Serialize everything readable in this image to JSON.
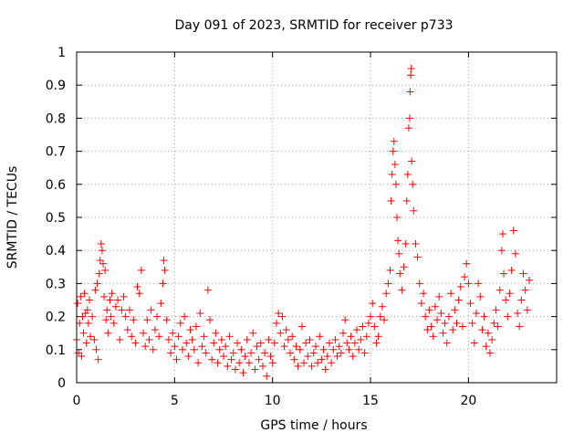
{
  "chart_data": {
    "type": "scatter",
    "title": "Day 091 of 2023, SRMTID for receiver p733",
    "xlabel": "GPS time / hours",
    "ylabel": "SRMTID / TECUs",
    "xlim": [
      0,
      24.5
    ],
    "ylim": [
      0,
      1
    ],
    "xticks": [
      0,
      5,
      10,
      15,
      20
    ],
    "xtick_labels": [
      "0",
      "5",
      "10",
      "15",
      "20"
    ],
    "yticks": [
      0,
      0.1,
      0.2,
      0.3,
      0.4,
      0.5,
      0.6,
      0.7,
      0.8,
      0.9,
      1
    ],
    "ytick_labels": [
      "0",
      "0.1",
      "0.2",
      "0.3",
      "0.4",
      "0.5",
      "0.6",
      "0.7",
      "0.8",
      "0.9",
      "1"
    ],
    "grid": true,
    "marker": "+",
    "color": "#ff0000",
    "series": [
      {
        "name": "p733",
        "points": [
          [
            0.0,
            0.13
          ],
          [
            0.05,
            0.24
          ],
          [
            0.1,
            0.09
          ],
          [
            0.15,
            0.18
          ],
          [
            0.2,
            0.26
          ],
          [
            0.25,
            0.08
          ],
          [
            0.3,
            0.2
          ],
          [
            0.35,
            0.15
          ],
          [
            0.4,
            0.27
          ],
          [
            0.45,
            0.21
          ],
          [
            0.5,
            0.12
          ],
          [
            0.55,
            0.22
          ],
          [
            0.6,
            0.18
          ],
          [
            0.65,
            0.25
          ],
          [
            0.7,
            0.14
          ],
          [
            0.8,
            0.2
          ],
          [
            0.9,
            0.13
          ],
          [
            0.95,
            0.28
          ],
          [
            1.0,
            0.1
          ],
          [
            1.05,
            0.3
          ],
          [
            1.1,
            0.07
          ],
          [
            1.15,
            0.33
          ],
          [
            1.2,
            0.37
          ],
          [
            1.25,
            0.42
          ],
          [
            1.3,
            0.4
          ],
          [
            1.35,
            0.36
          ],
          [
            1.4,
            0.26
          ],
          [
            1.45,
            0.34
          ],
          [
            1.5,
            0.19
          ],
          [
            1.55,
            0.22
          ],
          [
            1.6,
            0.15
          ],
          [
            1.7,
            0.25
          ],
          [
            1.75,
            0.2
          ],
          [
            1.8,
            0.27
          ],
          [
            1.9,
            0.18
          ],
          [
            2.0,
            0.23
          ],
          [
            2.1,
            0.25
          ],
          [
            2.2,
            0.13
          ],
          [
            2.3,
            0.22
          ],
          [
            2.4,
            0.26
          ],
          [
            2.5,
            0.2
          ],
          [
            2.6,
            0.16
          ],
          [
            2.7,
            0.22
          ],
          [
            2.8,
            0.14
          ],
          [
            2.9,
            0.19
          ],
          [
            3.0,
            0.12
          ],
          [
            3.1,
            0.29
          ],
          [
            3.2,
            0.27
          ],
          [
            3.3,
            0.34
          ],
          [
            3.4,
            0.15
          ],
          [
            3.5,
            0.11
          ],
          [
            3.6,
            0.19
          ],
          [
            3.7,
            0.13
          ],
          [
            3.8,
            0.22
          ],
          [
            3.9,
            0.1
          ],
          [
            4.0,
            0.16
          ],
          [
            4.1,
            0.2
          ],
          [
            4.2,
            0.14
          ],
          [
            4.3,
            0.24
          ],
          [
            4.4,
            0.3
          ],
          [
            4.45,
            0.37
          ],
          [
            4.5,
            0.34
          ],
          [
            4.6,
            0.19
          ],
          [
            4.7,
            0.13
          ],
          [
            4.8,
            0.09
          ],
          [
            4.9,
            0.15
          ],
          [
            5.0,
            0.11
          ],
          [
            5.1,
            0.07
          ],
          [
            5.2,
            0.14
          ],
          [
            5.3,
            0.18
          ],
          [
            5.4,
            0.1
          ],
          [
            5.5,
            0.2
          ],
          [
            5.6,
            0.12
          ],
          [
            5.7,
            0.08
          ],
          [
            5.8,
            0.16
          ],
          [
            5.9,
            0.13
          ],
          [
            6.0,
            0.1
          ],
          [
            6.1,
            0.17
          ],
          [
            6.2,
            0.06
          ],
          [
            6.3,
            0.21
          ],
          [
            6.4,
            0.11
          ],
          [
            6.5,
            0.14
          ],
          [
            6.6,
            0.09
          ],
          [
            6.7,
            0.28
          ],
          [
            6.8,
            0.19
          ],
          [
            6.9,
            0.07
          ],
          [
            7.0,
            0.12
          ],
          [
            7.1,
            0.15
          ],
          [
            7.2,
            0.06
          ],
          [
            7.3,
            0.1
          ],
          [
            7.4,
            0.13
          ],
          [
            7.5,
            0.08
          ],
          [
            7.6,
            0.11
          ],
          [
            7.7,
            0.05
          ],
          [
            7.8,
            0.14
          ],
          [
            7.9,
            0.07
          ],
          [
            8.0,
            0.09
          ],
          [
            8.1,
            0.04
          ],
          [
            8.2,
            0.12
          ],
          [
            8.3,
            0.06
          ],
          [
            8.4,
            0.1
          ],
          [
            8.5,
            0.03
          ],
          [
            8.6,
            0.08
          ],
          [
            8.7,
            0.13
          ],
          [
            8.8,
            0.06
          ],
          [
            8.9,
            0.09
          ],
          [
            9.0,
            0.15
          ],
          [
            9.1,
            0.04
          ],
          [
            9.2,
            0.11
          ],
          [
            9.3,
            0.07
          ],
          [
            9.4,
            0.12
          ],
          [
            9.5,
            0.05
          ],
          [
            9.6,
            0.09
          ],
          [
            9.7,
            0.02
          ],
          [
            9.8,
            0.13
          ],
          [
            9.9,
            0.08
          ],
          [
            10.0,
            0.06
          ],
          [
            10.1,
            0.12
          ],
          [
            10.2,
            0.18
          ],
          [
            10.3,
            0.21
          ],
          [
            10.4,
            0.15
          ],
          [
            10.5,
            0.2
          ],
          [
            10.6,
            0.11
          ],
          [
            10.7,
            0.16
          ],
          [
            10.8,
            0.13
          ],
          [
            10.9,
            0.09
          ],
          [
            11.0,
            0.14
          ],
          [
            11.1,
            0.07
          ],
          [
            11.2,
            0.11
          ],
          [
            11.3,
            0.05
          ],
          [
            11.4,
            0.1
          ],
          [
            11.5,
            0.17
          ],
          [
            11.6,
            0.06
          ],
          [
            11.7,
            0.12
          ],
          [
            11.8,
            0.08
          ],
          [
            11.9,
            0.13
          ],
          [
            12.0,
            0.05
          ],
          [
            12.1,
            0.09
          ],
          [
            12.2,
            0.11
          ],
          [
            12.3,
            0.06
          ],
          [
            12.4,
            0.14
          ],
          [
            12.5,
            0.07
          ],
          [
            12.6,
            0.1
          ],
          [
            12.7,
            0.04
          ],
          [
            12.8,
            0.08
          ],
          [
            12.9,
            0.12
          ],
          [
            13.0,
            0.06
          ],
          [
            13.1,
            0.1
          ],
          [
            13.2,
            0.13
          ],
          [
            13.3,
            0.08
          ],
          [
            13.4,
            0.11
          ],
          [
            13.5,
            0.09
          ],
          [
            13.6,
            0.15
          ],
          [
            13.7,
            0.19
          ],
          [
            13.8,
            0.12
          ],
          [
            13.9,
            0.1
          ],
          [
            14.0,
            0.14
          ],
          [
            14.1,
            0.08
          ],
          [
            14.2,
            0.12
          ],
          [
            14.3,
            0.16
          ],
          [
            14.4,
            0.1
          ],
          [
            14.5,
            0.13
          ],
          [
            14.6,
            0.17
          ],
          [
            14.7,
            0.09
          ],
          [
            14.8,
            0.14
          ],
          [
            14.9,
            0.18
          ],
          [
            15.0,
            0.2
          ],
          [
            15.1,
            0.24
          ],
          [
            15.2,
            0.17
          ],
          [
            15.3,
            0.12
          ],
          [
            15.4,
            0.14
          ],
          [
            15.5,
            0.2
          ],
          [
            15.6,
            0.23
          ],
          [
            15.7,
            0.19
          ],
          [
            15.8,
            0.27
          ],
          [
            15.9,
            0.3
          ],
          [
            16.0,
            0.34
          ],
          [
            16.05,
            0.55
          ],
          [
            16.1,
            0.63
          ],
          [
            16.15,
            0.7
          ],
          [
            16.2,
            0.73
          ],
          [
            16.25,
            0.66
          ],
          [
            16.3,
            0.6
          ],
          [
            16.35,
            0.5
          ],
          [
            16.4,
            0.43
          ],
          [
            16.45,
            0.39
          ],
          [
            16.5,
            0.33
          ],
          [
            16.6,
            0.28
          ],
          [
            16.7,
            0.35
          ],
          [
            16.8,
            0.42
          ],
          [
            16.85,
            0.55
          ],
          [
            16.9,
            0.63
          ],
          [
            16.95,
            0.77
          ],
          [
            17.0,
            0.8
          ],
          [
            17.02,
            0.88
          ],
          [
            17.05,
            0.93
          ],
          [
            17.08,
            0.95
          ],
          [
            17.1,
            0.67
          ],
          [
            17.15,
            0.6
          ],
          [
            17.2,
            0.52
          ],
          [
            17.3,
            0.42
          ],
          [
            17.4,
            0.38
          ],
          [
            17.5,
            0.3
          ],
          [
            17.6,
            0.24
          ],
          [
            17.7,
            0.27
          ],
          [
            17.8,
            0.2
          ],
          [
            17.9,
            0.16
          ],
          [
            18.0,
            0.22
          ],
          [
            18.1,
            0.17
          ],
          [
            18.2,
            0.14
          ],
          [
            18.3,
            0.23
          ],
          [
            18.4,
            0.19
          ],
          [
            18.5,
            0.26
          ],
          [
            18.6,
            0.21
          ],
          [
            18.7,
            0.15
          ],
          [
            18.8,
            0.18
          ],
          [
            18.9,
            0.12
          ],
          [
            19.0,
            0.2
          ],
          [
            19.1,
            0.27
          ],
          [
            19.2,
            0.16
          ],
          [
            19.3,
            0.22
          ],
          [
            19.4,
            0.18
          ],
          [
            19.5,
            0.25
          ],
          [
            19.6,
            0.29
          ],
          [
            19.7,
            0.17
          ],
          [
            19.8,
            0.32
          ],
          [
            19.9,
            0.36
          ],
          [
            20.0,
            0.3
          ],
          [
            20.1,
            0.24
          ],
          [
            20.2,
            0.18
          ],
          [
            20.3,
            0.12
          ],
          [
            20.4,
            0.21
          ],
          [
            20.5,
            0.3
          ],
          [
            20.6,
            0.26
          ],
          [
            20.7,
            0.16
          ],
          [
            20.8,
            0.2
          ],
          [
            20.9,
            0.11
          ],
          [
            21.0,
            0.15
          ],
          [
            21.1,
            0.09
          ],
          [
            21.2,
            0.13
          ],
          [
            21.3,
            0.18
          ],
          [
            21.4,
            0.22
          ],
          [
            21.5,
            0.17
          ],
          [
            21.6,
            0.28
          ],
          [
            21.7,
            0.4
          ],
          [
            21.75,
            0.45
          ],
          [
            21.8,
            0.33
          ],
          [
            21.9,
            0.25
          ],
          [
            22.0,
            0.2
          ],
          [
            22.1,
            0.27
          ],
          [
            22.2,
            0.34
          ],
          [
            22.3,
            0.46
          ],
          [
            22.4,
            0.39
          ],
          [
            22.5,
            0.21
          ],
          [
            22.6,
            0.17
          ],
          [
            22.7,
            0.25
          ],
          [
            22.8,
            0.33
          ],
          [
            22.9,
            0.28
          ],
          [
            23.0,
            0.22
          ],
          [
            23.1,
            0.31
          ]
        ]
      }
    ]
  }
}
